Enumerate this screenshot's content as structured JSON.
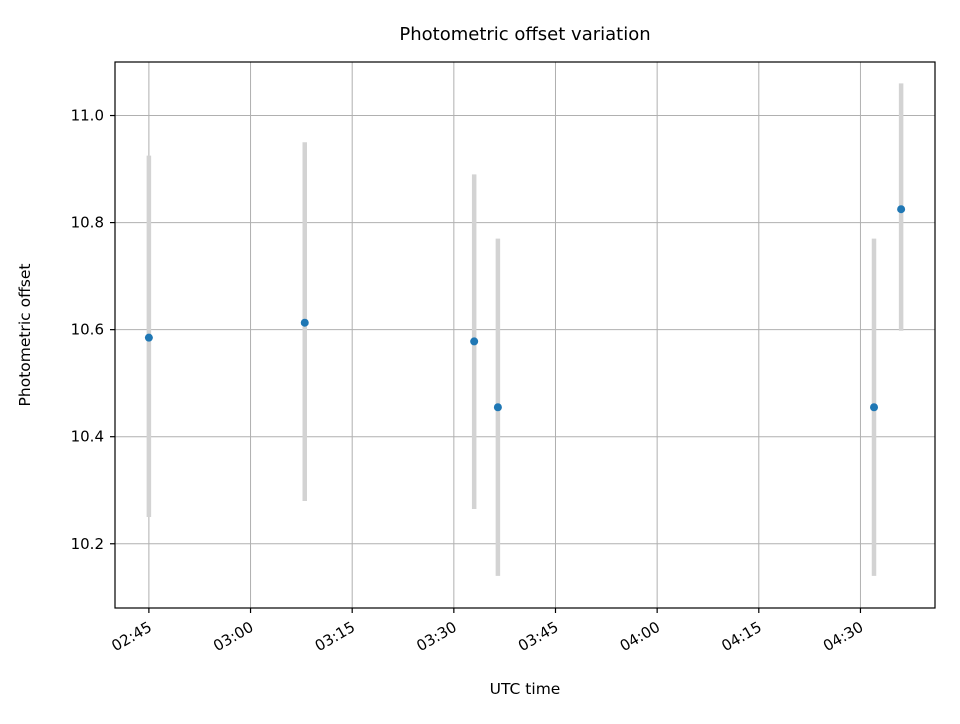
{
  "chart_data": {
    "type": "scatter",
    "title": "Photometric offset variation",
    "xlabel": "UTC time",
    "ylabel": "Photometric offset",
    "grid": true,
    "legend": "none",
    "marker_color": "#1f77b4",
    "errorbar_color": "#d3d3d3",
    "xlim_minutes": [
      160,
      281
    ],
    "ylim": [
      10.08,
      11.1
    ],
    "x_ticks": [
      {
        "minutes": 165,
        "label": "02:45"
      },
      {
        "minutes": 180,
        "label": "03:00"
      },
      {
        "minutes": 195,
        "label": "03:15"
      },
      {
        "minutes": 210,
        "label": "03:30"
      },
      {
        "minutes": 225,
        "label": "03:45"
      },
      {
        "minutes": 240,
        "label": "04:00"
      },
      {
        "minutes": 255,
        "label": "04:15"
      },
      {
        "minutes": 270,
        "label": "04:30"
      }
    ],
    "y_ticks": [
      10.2,
      10.4,
      10.6,
      10.8,
      11.0
    ],
    "points": [
      {
        "utc": "02:45",
        "minutes": 165,
        "y": 10.585,
        "y_lo": 10.25,
        "y_hi": 10.925
      },
      {
        "utc": "03:08",
        "minutes": 188,
        "y": 10.613,
        "y_lo": 10.28,
        "y_hi": 10.95
      },
      {
        "utc": "03:33",
        "minutes": 213,
        "y": 10.578,
        "y_lo": 10.265,
        "y_hi": 10.89
      },
      {
        "utc": "03:36",
        "minutes": 216.5,
        "y": 10.455,
        "y_lo": 10.14,
        "y_hi": 10.77
      },
      {
        "utc": "04:32",
        "minutes": 272,
        "y": 10.455,
        "y_lo": 10.14,
        "y_hi": 10.77
      },
      {
        "utc": "04:36",
        "minutes": 276,
        "y": 10.825,
        "y_lo": 10.598,
        "y_hi": 11.06
      }
    ]
  }
}
